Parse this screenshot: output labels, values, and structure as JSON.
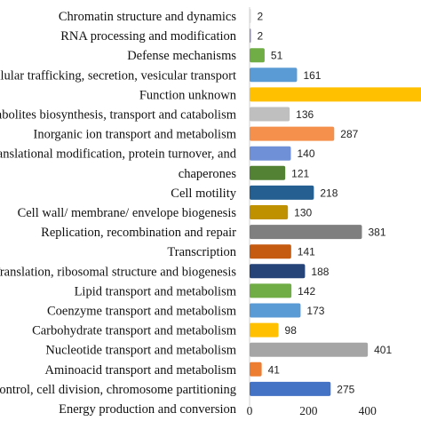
{
  "chart_data": {
    "type": "bar",
    "orientation": "horizontal",
    "categories": [
      "Chromatin structure and dynamics",
      "RNA processing and modification",
      "Defense mechanisms",
      "Intracellular trafficking, secretion, vesicular transport",
      "Function unknown",
      "Secondary metabolites biosynthesis, transport and catabolism",
      "Inorganic ion transport and metabolism",
      "Posttranslational modification, protein turnover, and",
      "chaperones",
      "Cell motility",
      "Cell wall/ membrane/ envelope biogenesis",
      "Replication, recombination and repair",
      "Transcription",
      "Translation, ribosomal structure and biogenesis",
      "Lipid transport and metabolism",
      "Coenzyme transport and metabolism",
      "Carbohydrate transport and metabolism",
      "Nucleotide transport and metabolism",
      "Aminoacid transport and metabolism",
      "Cell cycle control, cell division, chromosome partitioning",
      "Energy production and conversion"
    ],
    "values": [
      2,
      2,
      51,
      161,
      null,
      136,
      287,
      140,
      121,
      218,
      130,
      381,
      141,
      188,
      142,
      173,
      98,
      401,
      41,
      275,
      null
    ],
    "value_labels": [
      "2",
      "2",
      "51",
      "161",
      "",
      "136",
      "287",
      "140",
      "121",
      "218",
      "130",
      "381",
      "141",
      "188",
      "142",
      "173",
      "98",
      "401",
      "41",
      "275",
      ""
    ],
    "bar_colors": [
      "#d9d9d9",
      "#8e86c7",
      "#70ad47",
      "#5b9bd5",
      "#ffc000",
      "#bfbfbf",
      "#f4904c",
      "#6f8fd6",
      "#548235",
      "#255e91",
      "#bf9000",
      "#7f7f7f",
      "#c55a11",
      "#264478",
      "#70ad47",
      "#5b9bd5",
      "#ffc000",
      "#a5a5a5",
      "#ed7d31",
      "#4472c4",
      "#4472c4"
    ],
    "x_ticks": [
      "0",
      "200",
      "400",
      "("
    ],
    "xlim": [
      0,
      595
    ],
    "xlabel": "",
    "ylabel": "",
    "title": "",
    "grid": false,
    "legend": "none"
  }
}
